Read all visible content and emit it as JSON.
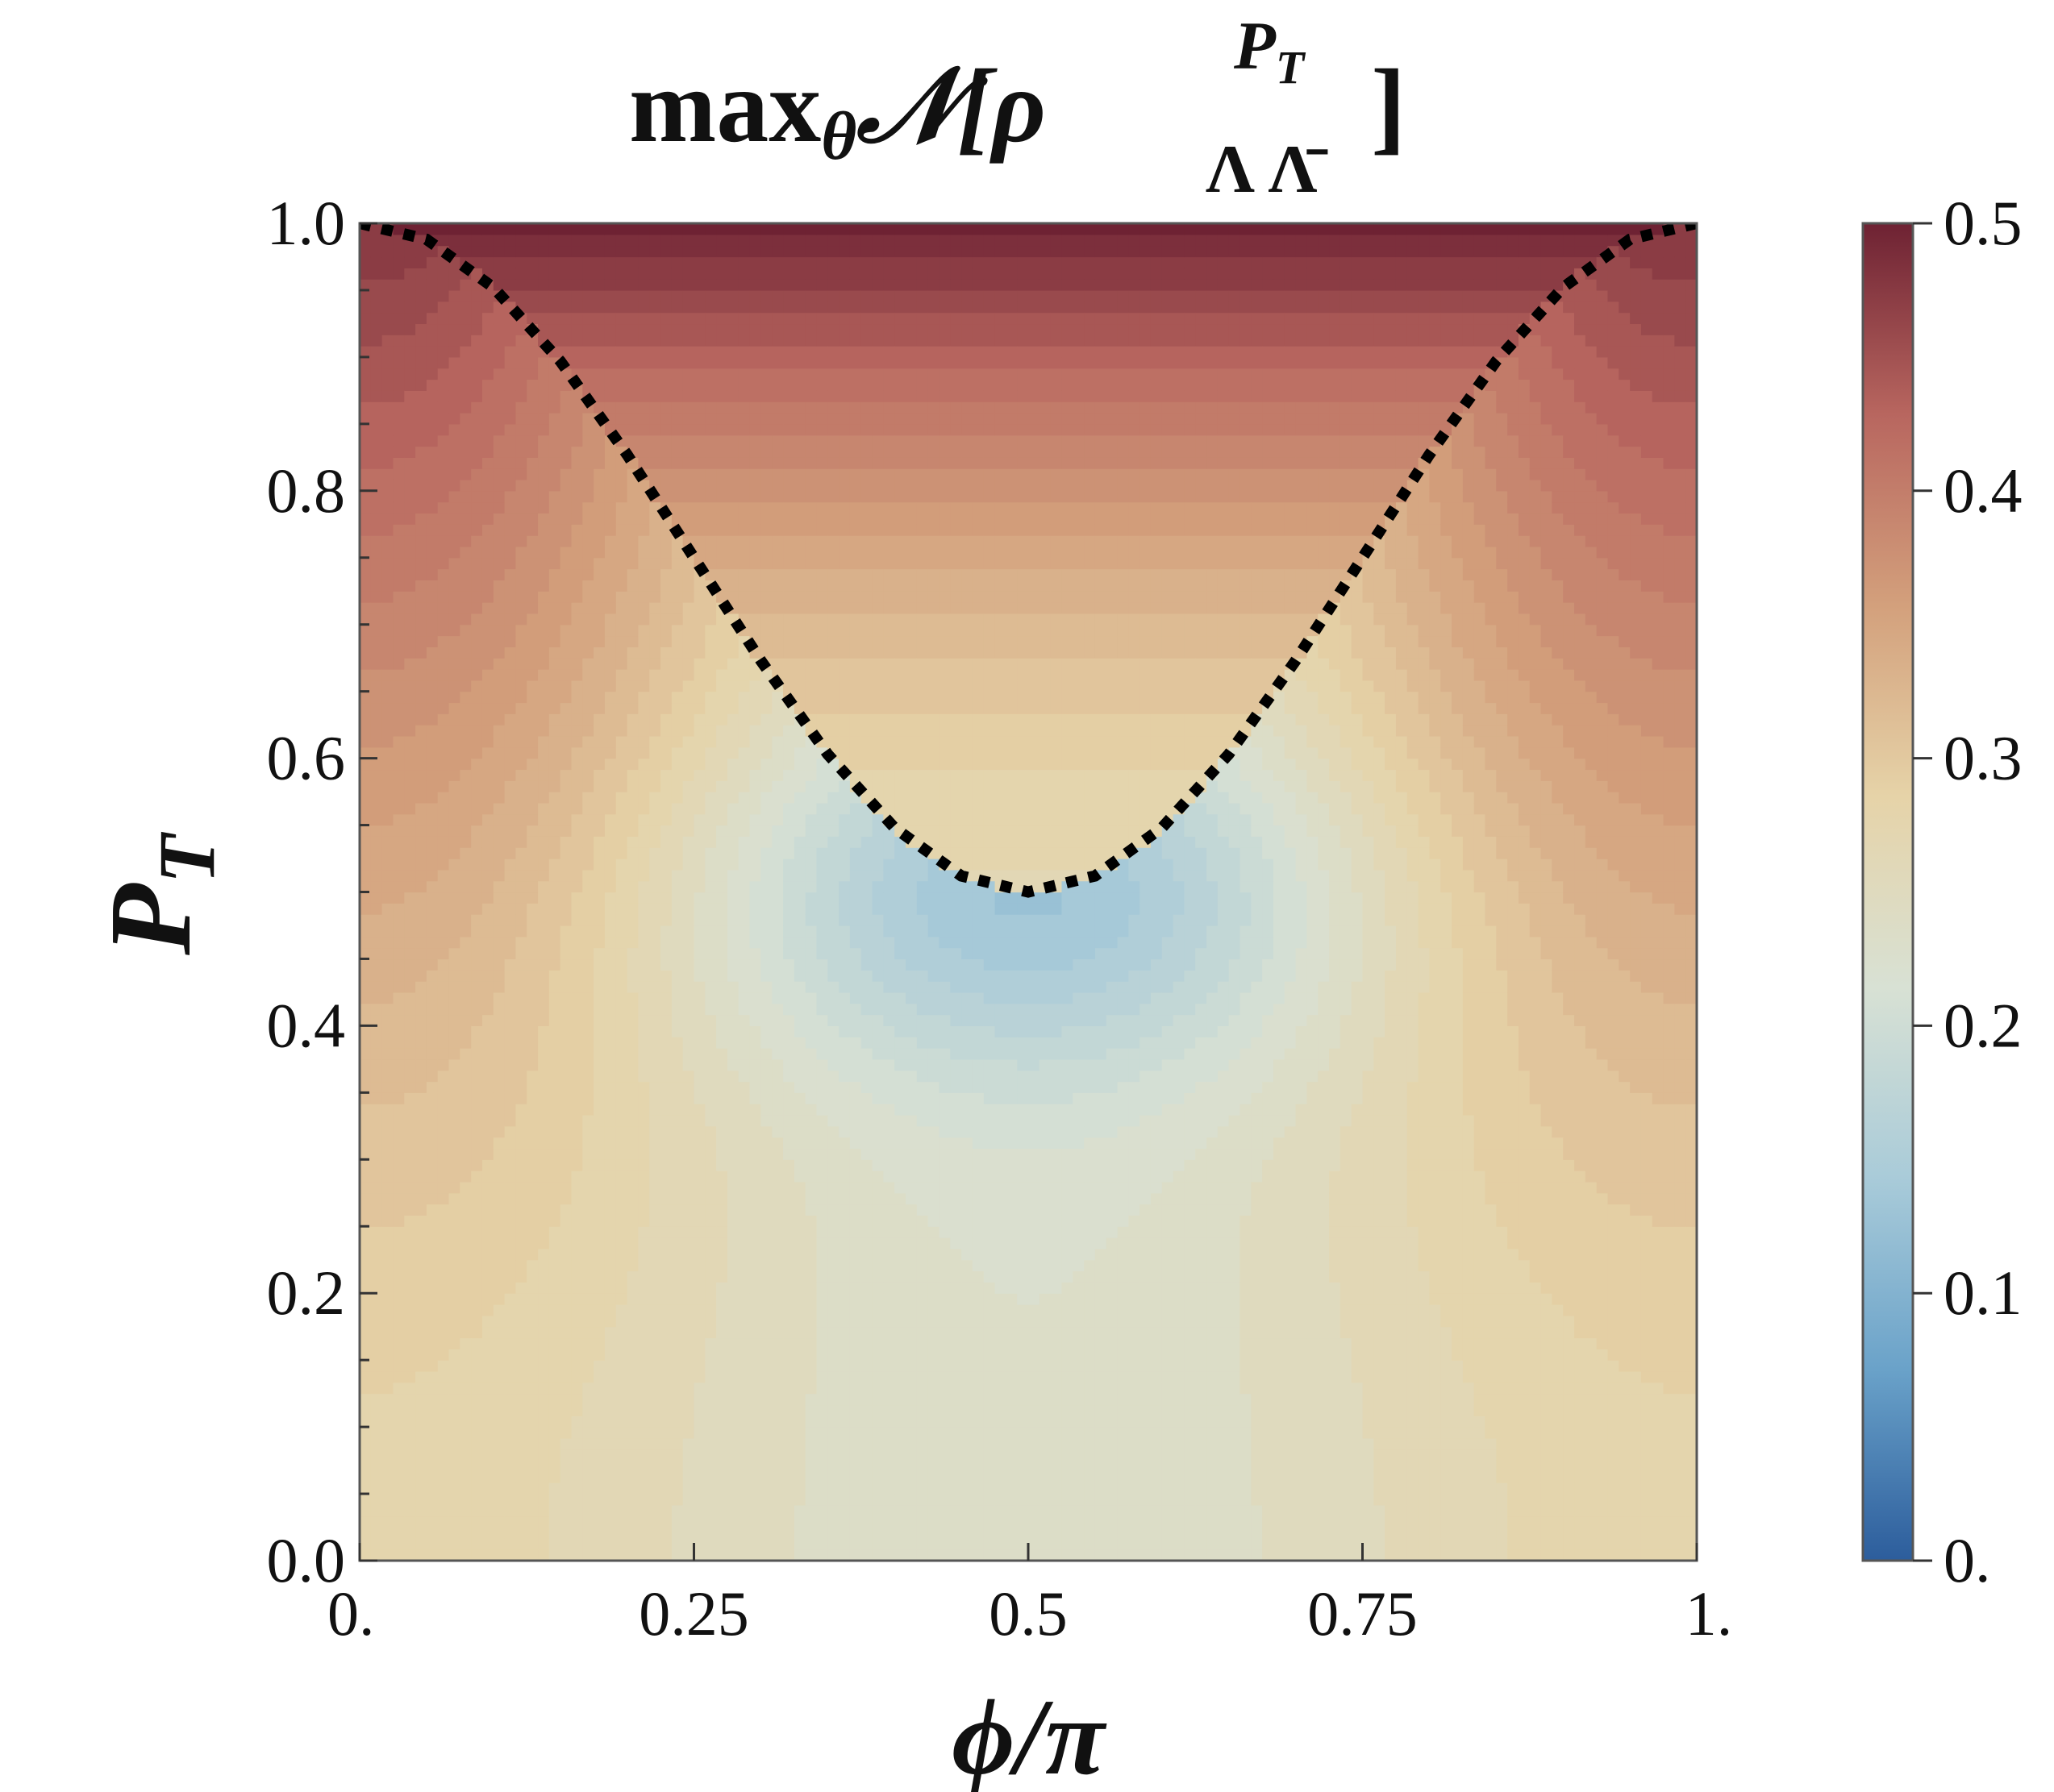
{
  "chart_data": {
    "type": "heatmap",
    "title": {
      "prefix": "max",
      "prefix_sub": "θ",
      "symbol": "𝒩[",
      "rho": "ρ",
      "rho_sup": "P",
      "rho_sup_sub": "T",
      "rho_sub": "Λ Λ̄",
      "close": "]"
    },
    "xlabel": "ϕ/π",
    "ylabel": {
      "main": "P",
      "sub": "T"
    },
    "xlim": [
      0,
      1
    ],
    "ylim": [
      0,
      1
    ],
    "x_ticks": [
      {
        "value": 0,
        "label": "0."
      },
      {
        "value": 0.25,
        "label": "0.25"
      },
      {
        "value": 0.5,
        "label": "0.5"
      },
      {
        "value": 0.75,
        "label": "0.75"
      },
      {
        "value": 1,
        "label": "1."
      }
    ],
    "y_ticks": [
      {
        "value": 0,
        "label": "0.0"
      },
      {
        "value": 0.2,
        "label": "0.2"
      },
      {
        "value": 0.4,
        "label": "0.4"
      },
      {
        "value": 0.6,
        "label": "0.6"
      },
      {
        "value": 0.8,
        "label": "0.8"
      },
      {
        "value": 1.0,
        "label": "1.0"
      }
    ],
    "colorbar": {
      "range": [
        0,
        0.5
      ],
      "ticks": [
        {
          "value": 0,
          "label": "0."
        },
        {
          "value": 0.1,
          "label": "0.1"
        },
        {
          "value": 0.2,
          "label": "0.2"
        },
        {
          "value": 0.3,
          "label": "0.3"
        },
        {
          "value": 0.4,
          "label": "0.4"
        },
        {
          "value": 0.5,
          "label": "0.5"
        }
      ],
      "colormap": [
        "#2c5d9c",
        "#6aa2c9",
        "#a9cbd9",
        "#d8e1d4",
        "#e6d3a8",
        "#d3a07c",
        "#b8665f",
        "#6e2233"
      ]
    },
    "grid": false,
    "contour_levels": 36,
    "boundary_curve": {
      "style": "dotted",
      "color": "#000000",
      "equation": "P_T = (1 + cos^2(π·ϕ/π)) / 2",
      "x": [
        0,
        0.05,
        0.1,
        0.15,
        0.2,
        0.25,
        0.3,
        0.35,
        0.4,
        0.45,
        0.5,
        0.55,
        0.6,
        0.65,
        0.7,
        0.75,
        0.8,
        0.85,
        0.9,
        0.95,
        1.0
      ],
      "y": [
        1.0,
        0.988,
        0.952,
        0.897,
        0.827,
        0.75,
        0.673,
        0.603,
        0.548,
        0.512,
        0.5,
        0.512,
        0.548,
        0.603,
        0.673,
        0.75,
        0.827,
        0.897,
        0.952,
        0.988,
        1.0
      ]
    },
    "minimum_value": 0.12,
    "maximum_value": 0.5
  }
}
